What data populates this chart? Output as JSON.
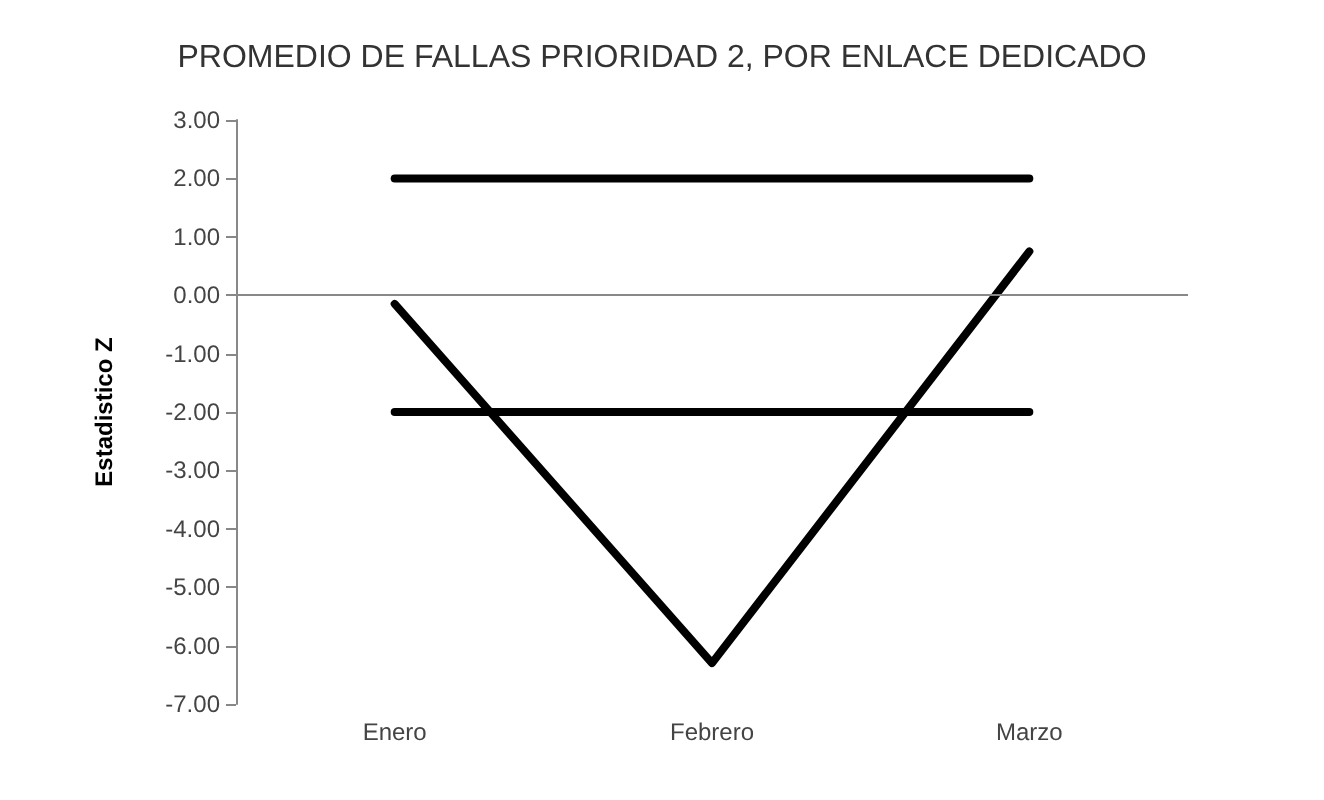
{
  "chart_data": {
    "type": "line",
    "title": "PROMEDIO DE FALLAS PRIORIDAD 2, POR ENLACE DEDICADO",
    "ylabel": "Estadistico Z",
    "categories": [
      "Enero",
      "Febrero",
      "Marzo"
    ],
    "series": [
      {
        "color": "#000000",
        "values": [
          2,
          2,
          2
        ]
      },
      {
        "color": "#000000",
        "values": [
          -2,
          -2,
          -2
        ]
      },
      {
        "color": "#000000",
        "values": [
          -0.15,
          -6.3,
          0.75
        ]
      }
    ],
    "ylim": [
      -7,
      3
    ],
    "yticks": [
      {
        "value": -7,
        "label": "-7.00"
      },
      {
        "value": -6,
        "label": "-6.00"
      },
      {
        "value": -5,
        "label": "-5.00"
      },
      {
        "value": -4,
        "label": "-4.00"
      },
      {
        "value": -3,
        "label": "-3.00"
      },
      {
        "value": -2,
        "label": "-2.00"
      },
      {
        "value": -1,
        "label": "-1.00"
      },
      {
        "value": 0,
        "label": "0.00"
      },
      {
        "value": 1,
        "label": "1.00"
      },
      {
        "value": 2,
        "label": "2.00"
      },
      {
        "value": 3,
        "label": "3.00"
      }
    ],
    "ref_lines": [
      {
        "axis": "y",
        "value": 0,
        "color": "#888888"
      }
    ],
    "grid": false,
    "marker": "none",
    "line_style": "solid"
  }
}
